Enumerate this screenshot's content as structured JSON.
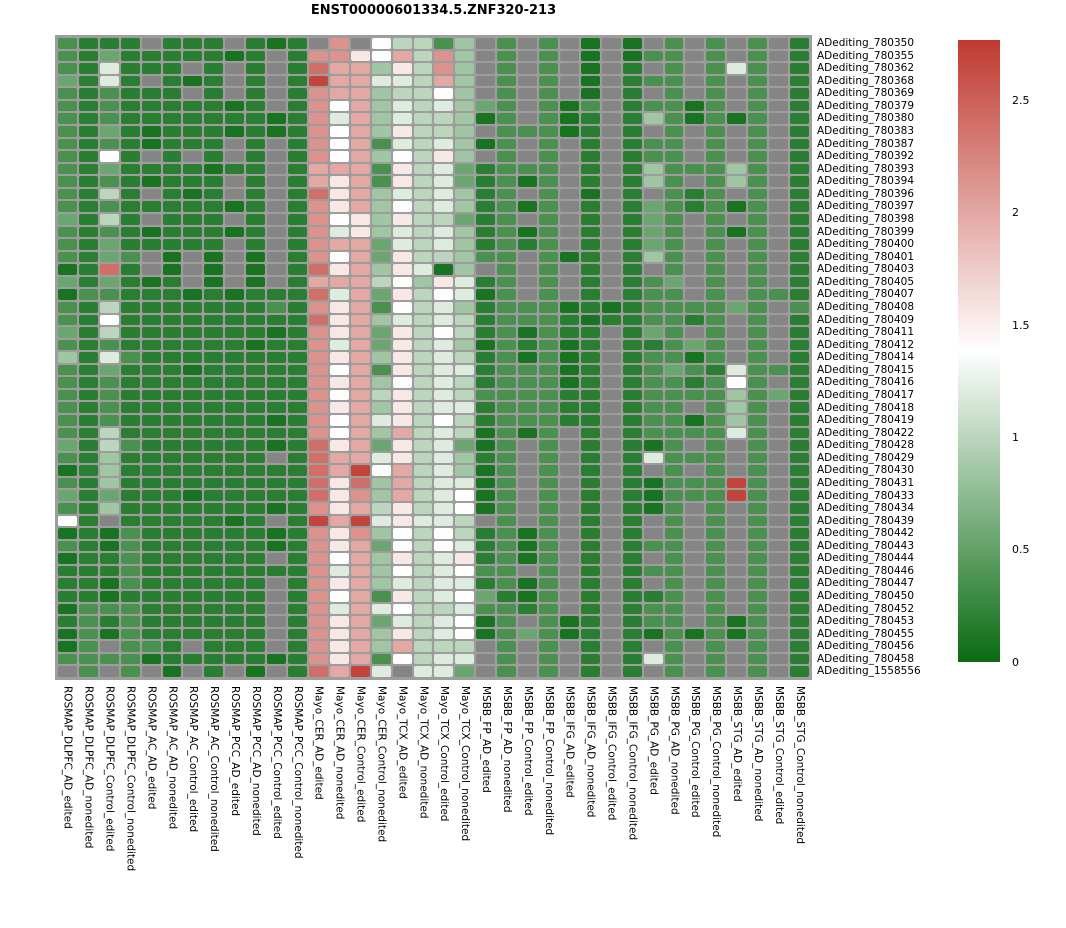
{
  "chart_data": {
    "type": "heatmap",
    "title": "ENST00000601334.5.ZNF320-213",
    "legend_position": "right",
    "rows": [
      "ADediting_780350",
      "ADediting_780355",
      "ADediting_780362",
      "ADediting_780368",
      "ADediting_780369",
      "ADediting_780379",
      "ADediting_780380",
      "ADediting_780383",
      "ADediting_780387",
      "ADediting_780392",
      "ADediting_780393",
      "ADediting_780394",
      "ADediting_780396",
      "ADediting_780397",
      "ADediting_780398",
      "ADediting_780399",
      "ADediting_780400",
      "ADediting_780401",
      "ADediting_780403",
      "ADediting_780405",
      "ADediting_780407",
      "ADediting_780408",
      "ADediting_780409",
      "ADediting_780411",
      "ADediting_780412",
      "ADediting_780414",
      "ADediting_780415",
      "ADediting_780416",
      "ADediting_780417",
      "ADediting_780418",
      "ADediting_780419",
      "ADediting_780422",
      "ADediting_780428",
      "ADediting_780429",
      "ADediting_780430",
      "ADediting_780431",
      "ADediting_780433",
      "ADediting_780434",
      "ADediting_780439",
      "ADediting_780442",
      "ADediting_780443",
      "ADediting_780444",
      "ADediting_780446",
      "ADediting_780447",
      "ADediting_780450",
      "ADediting_780452",
      "ADediting_780453",
      "ADediting_780455",
      "ADediting_780456",
      "ADediting_780458",
      "ADediting_1558556"
    ],
    "cols": [
      "ROSMAP_DLPFC_AD_edited",
      "ROSMAP_DLPFC_AD_nonedited",
      "ROSMAP_DLPFC_Control_edited",
      "ROSMAP_DLPFC_Control_nonedited",
      "ROSMAP_AC_AD_edited",
      "ROSMAP_AC_AD_nonedited",
      "ROSMAP_AC_Control_edited",
      "ROSMAP_AC_Control_nonedited",
      "ROSMAP_PCC_AD_edited",
      "ROSMAP_PCC_AD_nonedited",
      "ROSMAP_PCC_Control_edited",
      "ROSMAP_PCC_Control_nonedited",
      "Mayo_CER_AD_edited",
      "Mayo_CER_AD_nonedited",
      "Mayo_CER_Control_edited",
      "Mayo_CER_Control_nonedited",
      "Mayo_TCX_AD_edited",
      "Mayo_TCX_AD_nonedited",
      "Mayo_TCX_Control_edited",
      "Mayo_TCX_Control_nonedited",
      "MSBB_FP_AD_edited",
      "MSBB_FP_AD_nonedited",
      "MSBB_FP_Control_edited",
      "MSBB_FP_Control_nonedited",
      "MSBB_IFG_AD_edited",
      "MSBB_IFG_AD_nonedited",
      "MSBB_IFG_Control_edited",
      "MSBB_IFG_Control_nonedited",
      "MSBB_PG_AD_edited",
      "MSBB_PG_AD_nonedited",
      "MSBB_PG_Control_edited",
      "MSBB_PG_Control_nonedited",
      "MSBB_STG_AD_edited",
      "MSBB_STG_AD_nonedited",
      "MSBB_STG_Control_edited",
      "MSBB_STG_Control_nonedited"
    ],
    "value_map": {
      ".": null,
      "0": 0.08,
      "1": 0.18,
      "2": 0.36,
      "3": 0.55,
      "4": 0.85,
      "5": 1.0,
      "6": 1.2,
      "7": 1.39,
      "8": 1.55,
      "9": 2.0,
      "a": 2.15,
      "b": 2.4,
      "c": 2.7
    },
    "matrix": [
      "2111.111.101.a.75524.2.2.0.0.2.2.2.1",
      "2131111101.1aa8795a4.2.2.0.022.2.2.1",
      "216111.1.1.1b99485a4.2.2.0.1.2.262.1",
      "3161.101.1.1c9966594.2.2.0.122.2.2.1",
      "212111.1.1.1a9945574.2.2.0.1.2.2.2.1",
      "2121111101.1a794656432.202.12202.2.1",
      "212111111101a694655402.201.1420202.1",
      "213101110101a7948554.22201.1.2.2.2.1",
      "21210111.1.1a792656402.2.1.122.2.2.1",
      "2171.1.1.1.1a7947584.2.2.1.122.2.2.1",
      "2131111011.1999285631222.1.1422242.1",
      "21210111.1.1989285631202.1.142.242.1",
      "2151.101.1.1b894656412.2.0.1.212.2.1",
      "2121111101.1a89475641202.1.1321202.1",
      "3151.111.1.1a784855312.2.1.132.2.2.1",
      "2121011101.1a68465641202.1.132.202.1",
      "21311111.1.1a99365641212.1.132.2.2.1",
      "2132.0.0.0.1a793855422.201.142.2.2.1",
      "01b1.0.0.0.1b8948604.2.2.1.1.2.2.2.1",
      "313101.0.0.19995748612.2.1.123.2.2.1",
      "022111010111b693857602.2.1.122.2.221",
      "215111111121a892756412220101222232.2",
      "217111111111b8946565122210112212.2.1",
      "315111111101a8938575120211.132.2.2.1",
      "212111111011a6938564021201.11232.2.1",
      "416211111111a8948565120201.12202.2.1",
      "213111011111a7928566122201.123216221",
      "212111111111a8947565122201.1221272.1",
      "212111111111a7958565222211.122224231",
      "212111111111a8948566122211.122.242.1",
      "212111111101a7968575122211.1220242.1",
      "215111111111a79495650202.1.1222262.1",
      "315211111101b893856302.2.1.102.2.2.1",
      "2141111111.1b996856412.2.1.16222.2.1",
      "014111111111b9c7956402.2.1.1.2.2.2.1",
      "214111111111b8b4956602.2.1.10222c2.1",
      "313111011111b8a4956702.2.1.10222c2.1",
      "214111111101a895856702.2.1.102.2.2.1",
      "71.1111101.1c9c68665.2.2.1.1.2.2.2.1",
      "010211111101a8a475751202.1.1.2.2.2.1",
      "210211111101a89375761202.1.122.2.2.1",
      "0112111111.1a79485681202.1.1.2.2.2.1",
      "111211111111a694756722.2.1.122.2.2.1",
      "1102111111.1a89465661202.1.1.2.2.2.1",
      "1101111111.1a79285673102.1.112.2.2.1",
      "0222111111.1a69675562212.1.122.2.2.1",
      "1212111111.1a893656702.201.122.202.1",
      "0202111111.1a8948567023201.1020202.1",
      "02.221.111.1a8949555.2.2.1.1.2.2.2.1",
      "222201111101a8927566.2.2.1.162.2.2.1",
      ".2.2.0.1.0.1b9c6.663.2.2.1.1.2.2.2.1"
    ],
    "colorscale": {
      "vmin": 0,
      "vmax": 2.77,
      "low": "#0a6b12",
      "mid": "#ffffff",
      "high": "#bf3a30",
      "na_color": "#858585",
      "grid_bg": "#9d9d9d"
    },
    "colorbar": {
      "ticks": [
        {
          "label": "2.5",
          "value": 2.5
        },
        {
          "label": "2",
          "value": 2
        },
        {
          "label": "1.5",
          "value": 1.5
        },
        {
          "label": "1",
          "value": 1
        },
        {
          "label": "0.5",
          "value": 0.5
        },
        {
          "label": "0",
          "value": 0
        }
      ]
    }
  }
}
